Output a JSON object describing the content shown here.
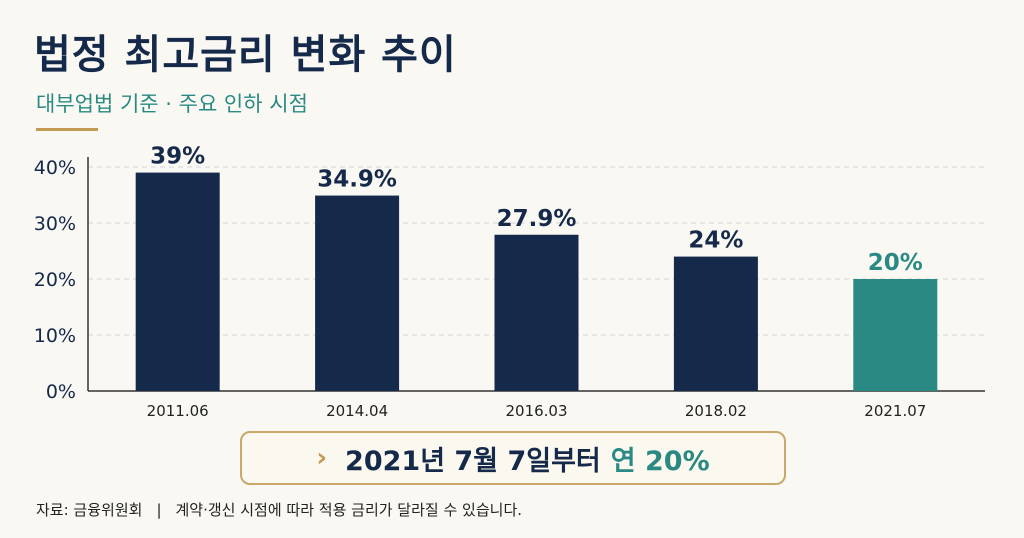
{
  "header": {
    "title": "법정 최고금리 변화 추이",
    "subtitle": "대부업법 기준 · 주요 인하 시점"
  },
  "chart_data": {
    "type": "bar",
    "categories": [
      "2011.06",
      "2014.04",
      "2016.03",
      "2018.02",
      "2021.07"
    ],
    "values": [
      39,
      34.9,
      27.9,
      24,
      20
    ],
    "value_labels": [
      "39%",
      "34.9%",
      "27.9%",
      "24%",
      "20%"
    ],
    "y_ticks": [
      "0%",
      "10%",
      "20%",
      "30%",
      "40%"
    ],
    "ylim": [
      0,
      40
    ],
    "grid": true,
    "colors": {
      "bar": "#15294a",
      "highlight": "#2a8a83",
      "highlight_index": 4
    }
  },
  "callout": {
    "chevron": "›",
    "text": "2021년 7월 7일부터",
    "highlight": "연 20%"
  },
  "footnote": {
    "source": "자료: 금융위원회",
    "separator": "|",
    "note": "계약·갱신 시점에 따라 적용 금리가 달라질 수 있습니다."
  },
  "colors": {
    "navy": "#15294a",
    "teal": "#2a8a83",
    "gold": "#c39a52",
    "background": "#f9f8f3"
  }
}
